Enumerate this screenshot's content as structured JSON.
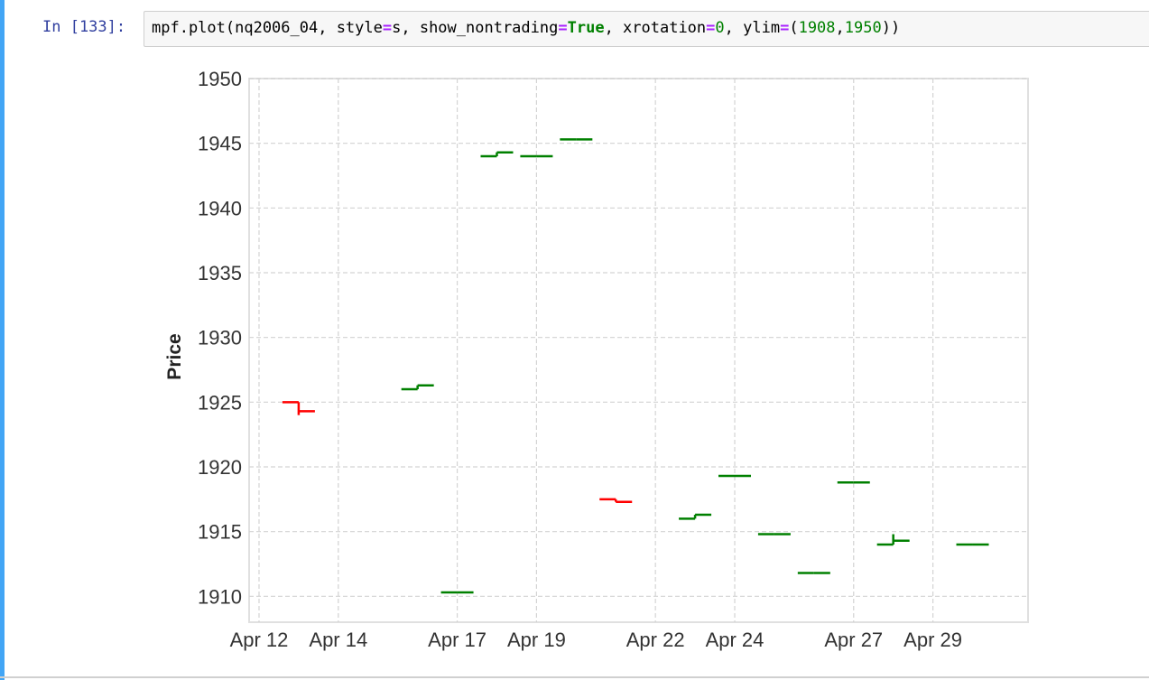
{
  "cell": {
    "prompt": "In [133]:",
    "code_tokens": [
      {
        "t": "mpf.plot(nq2006_04, style",
        "c": ""
      },
      {
        "t": "=",
        "c": "op"
      },
      {
        "t": "s, show_nontrading",
        "c": ""
      },
      {
        "t": "=",
        "c": "op"
      },
      {
        "t": "True",
        "c": "kw"
      },
      {
        "t": ", xrotation",
        "c": ""
      },
      {
        "t": "=",
        "c": "op"
      },
      {
        "t": "0",
        "c": "num"
      },
      {
        "t": ", ylim",
        "c": ""
      },
      {
        "t": "=",
        "c": "op"
      },
      {
        "t": "(",
        "c": ""
      },
      {
        "t": "1908",
        "c": "num"
      },
      {
        "t": ",",
        "c": ""
      },
      {
        "t": "1950",
        "c": "num"
      },
      {
        "t": "))",
        "c": ""
      }
    ]
  },
  "colors": {
    "up": "#008000",
    "down": "#ff0000",
    "grid": "#d3d3d3",
    "axis": "#e0e0e0"
  },
  "chart_data": {
    "type": "ohlc",
    "ylabel": "Price",
    "ylim": [
      1908,
      1950
    ],
    "yticks": [
      1910,
      1915,
      1920,
      1925,
      1930,
      1935,
      1940,
      1945,
      1950
    ],
    "xticks": [
      "Apr 12",
      "Apr 14",
      "Apr 17",
      "Apr 19",
      "Apr 22",
      "Apr 24",
      "Apr 27",
      "Apr 29"
    ],
    "x_range_days": [
      11.75,
      31.4
    ],
    "grid": true,
    "bars": [
      {
        "day": 13,
        "open": 1925.0,
        "high": 1925.0,
        "low": 1924.0,
        "close": 1924.3
      },
      {
        "day": 16,
        "open": 1926.0,
        "high": 1926.3,
        "low": 1926.0,
        "close": 1926.3
      },
      {
        "day": 17,
        "open": 1910.3,
        "high": 1910.3,
        "low": 1910.3,
        "close": 1910.3
      },
      {
        "day": 18,
        "open": 1944.0,
        "high": 1944.3,
        "low": 1944.0,
        "close": 1944.3
      },
      {
        "day": 19,
        "open": 1944.0,
        "high": 1944.0,
        "low": 1944.0,
        "close": 1944.0
      },
      {
        "day": 20,
        "open": 1945.3,
        "high": 1945.3,
        "low": 1945.3,
        "close": 1945.3
      },
      {
        "day": 21,
        "open": 1917.5,
        "high": 1917.5,
        "low": 1917.3,
        "close": 1917.3
      },
      {
        "day": 23,
        "open": 1916.0,
        "high": 1916.3,
        "low": 1916.0,
        "close": 1916.3
      },
      {
        "day": 24,
        "open": 1919.3,
        "high": 1919.3,
        "low": 1919.3,
        "close": 1919.3
      },
      {
        "day": 25,
        "open": 1914.8,
        "high": 1914.8,
        "low": 1914.8,
        "close": 1914.8
      },
      {
        "day": 26,
        "open": 1911.8,
        "high": 1911.8,
        "low": 1911.8,
        "close": 1911.8
      },
      {
        "day": 27,
        "open": 1918.8,
        "high": 1918.8,
        "low": 1918.8,
        "close": 1918.8
      },
      {
        "day": 28,
        "open": 1914.0,
        "high": 1914.8,
        "low": 1914.0,
        "close": 1914.3
      },
      {
        "day": 30,
        "open": 1914.0,
        "high": 1914.0,
        "low": 1914.0,
        "close": 1914.0
      }
    ]
  }
}
